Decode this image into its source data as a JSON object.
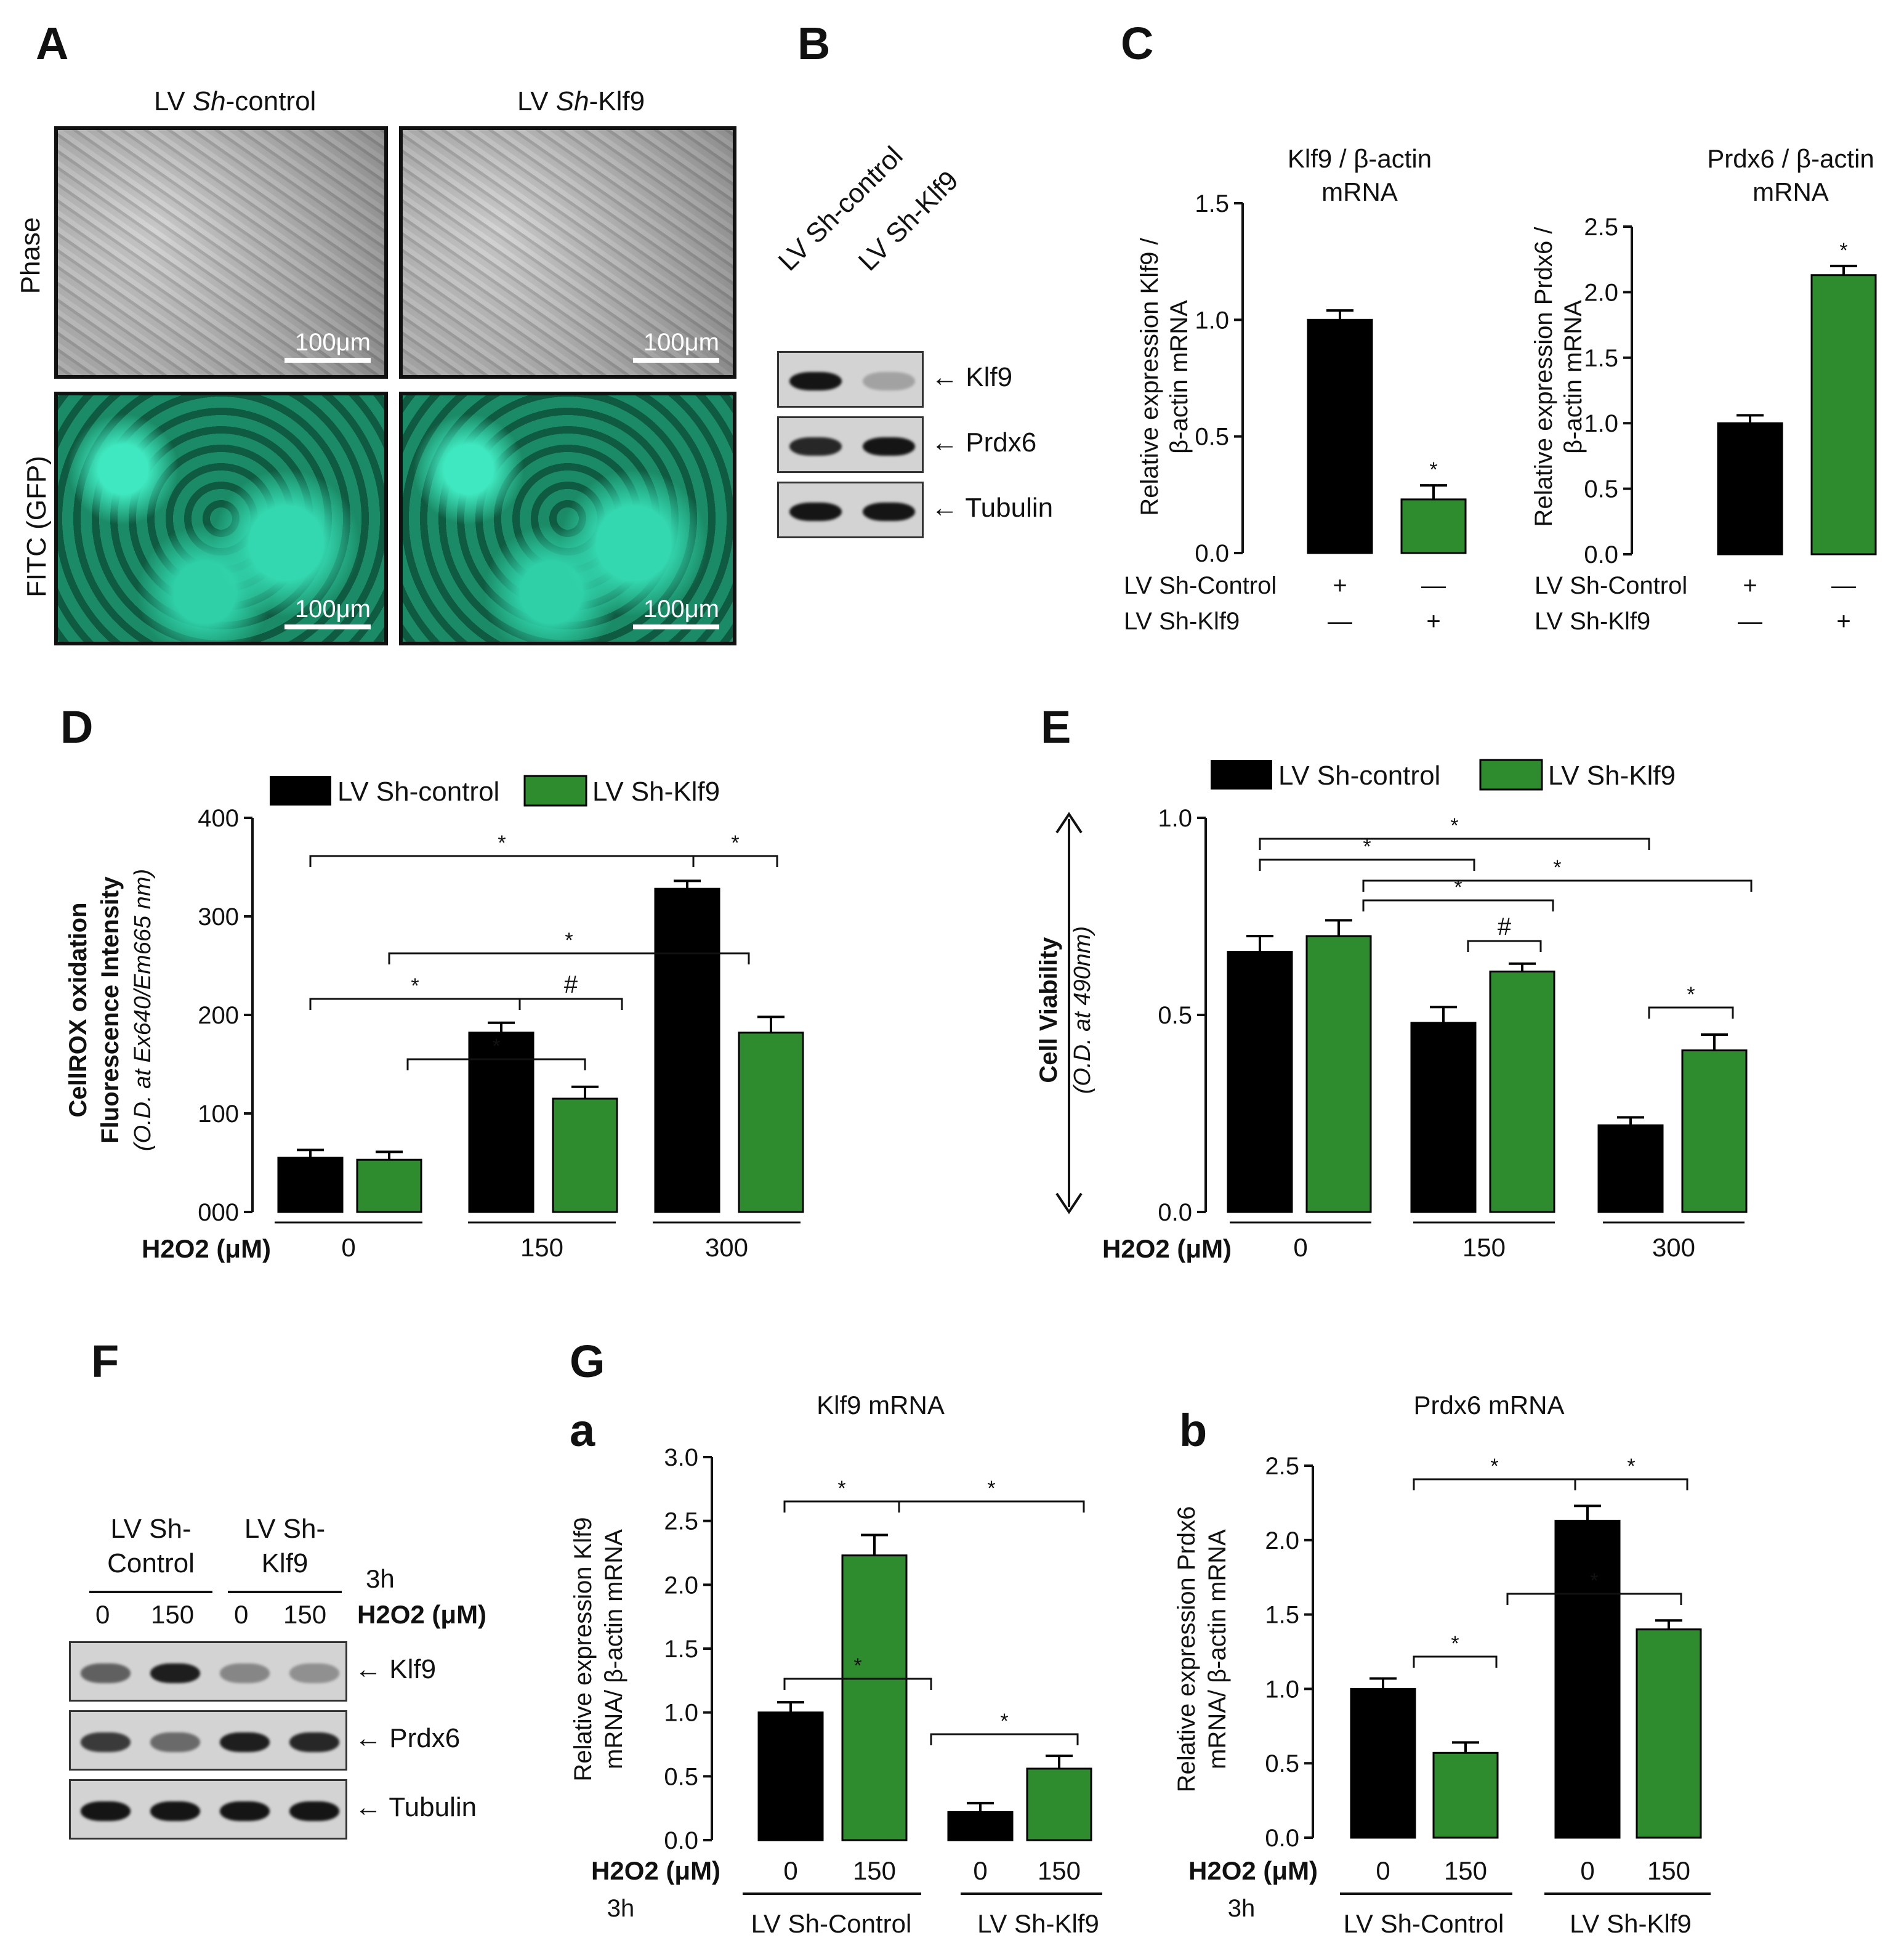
{
  "panels": {
    "A": "A",
    "B": "B",
    "C": "C",
    "D": "D",
    "E": "E",
    "F": "F",
    "G": "G",
    "Ga": "a",
    "Gb": "b"
  },
  "panelA": {
    "col1": {
      "prefix": "LV ",
      "italic": "Sh",
      "suffix": "-control"
    },
    "col2": {
      "prefix": "LV ",
      "italic": "Sh",
      "suffix": "-Klf9"
    },
    "row1": "Phase",
    "row2": "FITC (GFP)",
    "scale": "100μm"
  },
  "panelB": {
    "lanes": [
      "LV Sh-control",
      "LV Sh-Klf9"
    ],
    "rows": [
      "Klf9",
      "Prdx6",
      "Tubulin"
    ],
    "band_intensity": [
      [
        1.0,
        0.25
      ],
      [
        0.9,
        1.0
      ],
      [
        1.0,
        1.0
      ]
    ]
  },
  "panelF": {
    "groups": [
      "LV Sh-Control",
      "LV Sh-Klf9"
    ],
    "time": "3h",
    "doses": [
      "0",
      "150",
      "0",
      "150"
    ],
    "h2o2": "H2O2 (μM)",
    "rows": [
      "Klf9",
      "Prdx6",
      "Tubulin"
    ],
    "band_intensity": [
      [
        0.6,
        0.95,
        0.4,
        0.35
      ],
      [
        0.8,
        0.55,
        0.95,
        0.9
      ],
      [
        1.0,
        1.0,
        1.0,
        1.0
      ]
    ]
  },
  "colors": {
    "black": "#000000",
    "green": "#2e8b2e"
  },
  "chart_data": [
    {
      "id": "C1",
      "type": "bar",
      "title": "Klf9 / β-actin mRNA",
      "ylabel": "Relative expression Klf9 / β-actin mRNA",
      "ylim": [
        0,
        1.5
      ],
      "yticks": [
        "0.0",
        "0.5",
        "1.0",
        "1.5"
      ],
      "values": [
        1.0,
        0.23
      ],
      "errors": [
        0.04,
        0.06
      ],
      "colors": [
        "black",
        "green"
      ],
      "significance": [
        "",
        "*"
      ],
      "conditions": [
        {
          "label": "LV Sh-Control",
          "marks": [
            "+",
            "—"
          ]
        },
        {
          "label": "LV Sh-Klf9",
          "marks": [
            "—",
            "+"
          ]
        }
      ]
    },
    {
      "id": "C2",
      "type": "bar",
      "title": "Prdx6 / β-actin mRNA",
      "ylabel": "Relative expression Prdx6 / β-actin mRNA",
      "ylim": [
        0,
        2.5
      ],
      "yticks": [
        "0.0",
        "0.5",
        "1.0",
        "1.5",
        "2.0",
        "2.5"
      ],
      "values": [
        1.0,
        2.13
      ],
      "errors": [
        0.06,
        0.07
      ],
      "colors": [
        "black",
        "green"
      ],
      "significance": [
        "",
        "*"
      ],
      "conditions": [
        {
          "label": "LV Sh-Control",
          "marks": [
            "+",
            "—"
          ]
        },
        {
          "label": "LV Sh-Klf9",
          "marks": [
            "—",
            "+"
          ]
        }
      ]
    },
    {
      "id": "D",
      "type": "bar",
      "ylabel": "CellROX oxidation Fluorescence Intensity",
      "ylabel2": "(O.D. at Ex640/Em665 nm)",
      "ylim": [
        0,
        400
      ],
      "yticks": [
        "000",
        "100",
        "200",
        "300",
        "400"
      ],
      "categories": [
        "0",
        "150",
        "300"
      ],
      "xlabel": "H2O2 (μM)",
      "series": [
        {
          "name": "LV Sh-control",
          "color": "black",
          "values": [
            55,
            182,
            328
          ],
          "errors": [
            8,
            10,
            8
          ]
        },
        {
          "name": "LV Sh-Klf9",
          "color": "green",
          "values": [
            53,
            115,
            182
          ],
          "errors": [
            8,
            12,
            16
          ]
        }
      ],
      "brackets": [
        "*",
        "*",
        "*",
        "*",
        "#",
        "*"
      ]
    },
    {
      "id": "E",
      "type": "bar",
      "ylabel": "Cell Viability",
      "ylabel2": "(O.D. at 490nm)",
      "ylim": [
        0,
        1.0
      ],
      "yticks": [
        "0.0",
        "0.5",
        "1.0"
      ],
      "categories": [
        "0",
        "150",
        "300"
      ],
      "xlabel": "H2O2 (μM)",
      "series": [
        {
          "name": "LV Sh-control",
          "color": "black",
          "values": [
            0.66,
            0.48,
            0.22
          ],
          "errors": [
            0.04,
            0.04,
            0.02
          ]
        },
        {
          "name": "LV Sh-Klf9",
          "color": "green",
          "values": [
            0.7,
            0.61,
            0.41
          ],
          "errors": [
            0.04,
            0.02,
            0.04
          ]
        }
      ],
      "brackets": [
        "*",
        "*",
        "*",
        "*",
        "#",
        "*"
      ]
    },
    {
      "id": "Ga",
      "type": "bar",
      "title": "Klf9 mRNA",
      "ylabel": "Relative expression Klf9 mRNA/ β-actin mRNA",
      "ylim": [
        0,
        3.0
      ],
      "yticks": [
        "0.0",
        "0.5",
        "1.0",
        "1.5",
        "2.0",
        "2.5",
        "3.0"
      ],
      "categories": [
        "0",
        "150",
        "0",
        "150"
      ],
      "groups": [
        "LV Sh-Control",
        "LV Sh-Klf9"
      ],
      "xlabel": "H2O2 (μM)",
      "time": "3h",
      "values": [
        1.0,
        2.23,
        0.22,
        0.56
      ],
      "errors": [
        0.08,
        0.16,
        0.07,
        0.1
      ],
      "colors": [
        "black",
        "green",
        "black",
        "green"
      ],
      "brackets": [
        "*",
        "*",
        "*",
        "*"
      ]
    },
    {
      "id": "Gb",
      "type": "bar",
      "title": "Prdx6 mRNA",
      "ylabel": "Relative expression Prdx6 mRNA/ β-actin mRNA",
      "ylim": [
        0,
        2.5
      ],
      "yticks": [
        "0.0",
        "0.5",
        "1.0",
        "1.5",
        "2.0",
        "2.5"
      ],
      "categories": [
        "0",
        "150",
        "0",
        "150"
      ],
      "groups": [
        "LV Sh-Control",
        "LV Sh-Klf9"
      ],
      "xlabel": "H2O2 (μM)",
      "time": "3h",
      "values": [
        1.0,
        0.57,
        2.13,
        1.4
      ],
      "errors": [
        0.07,
        0.07,
        0.1,
        0.06
      ],
      "colors": [
        "black",
        "green",
        "black",
        "green"
      ],
      "brackets": [
        "*",
        "*",
        "*",
        "*"
      ]
    }
  ]
}
